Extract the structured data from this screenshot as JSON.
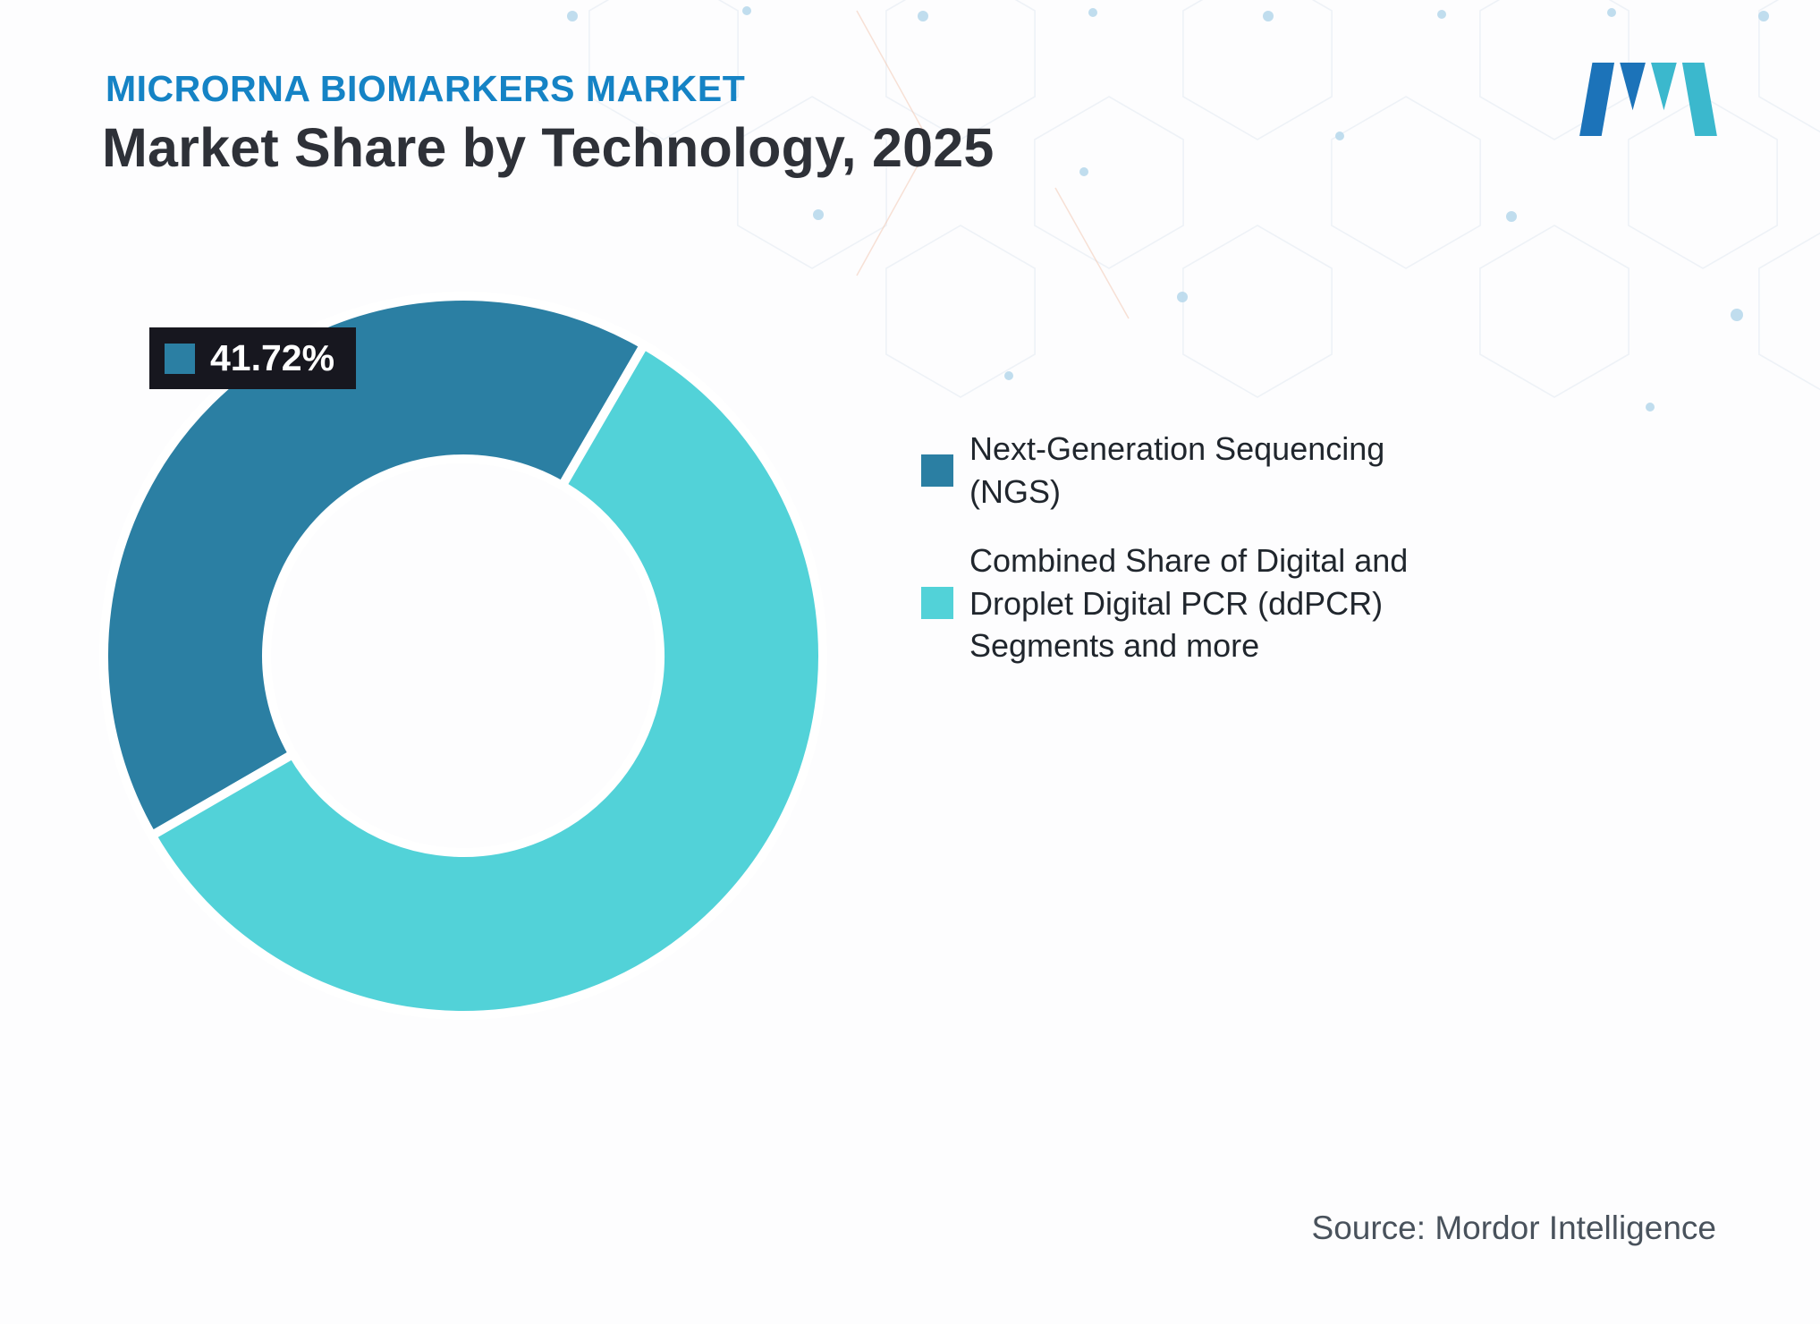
{
  "header": {
    "eyebrow": "MICRORNA BIOMARKERS MARKET",
    "title": "Market Share by Technology, 2025"
  },
  "logo": {
    "alt": "Mordor Intelligence logo",
    "colors": {
      "dark": "#1C73B9",
      "teal": "#3BB8CD"
    }
  },
  "chart_data": {
    "type": "pie",
    "subtype": "donut",
    "title": "Market Share by Technology, 2025",
    "legend_position": "right",
    "start_angle_deg": 240,
    "direction": "clockwise",
    "series": [
      {
        "name": "Next-Generation Sequencing (NGS)",
        "value": 41.72,
        "color": "#2B7FA3"
      },
      {
        "name": "Combined Share of Digital and Droplet Digital PCR (ddPCR) Segments and more",
        "value": 58.28,
        "color": "#52D2D8"
      }
    ],
    "callout": {
      "text": "41.72%",
      "series_index": 0
    }
  },
  "legend": {
    "items": [
      {
        "label": "Next-Generation Sequencing (NGS)",
        "color": "#2B7FA3"
      },
      {
        "label": "Combined Share of Digital and Droplet Digital PCR (ddPCR) Segments and more",
        "color": "#52D2D8"
      }
    ]
  },
  "footer": {
    "source": "Source: Mordor Intelligence"
  },
  "colors": {
    "eyebrow": "#1583C5",
    "title": "#2E3138",
    "badge_bg": "#17171F",
    "badge_text": "#FFFFFF",
    "legend_text": "#20262D",
    "source_text": "#49525C",
    "background": "#FDFDFE",
    "slice_gap": "#FFFFFF"
  }
}
